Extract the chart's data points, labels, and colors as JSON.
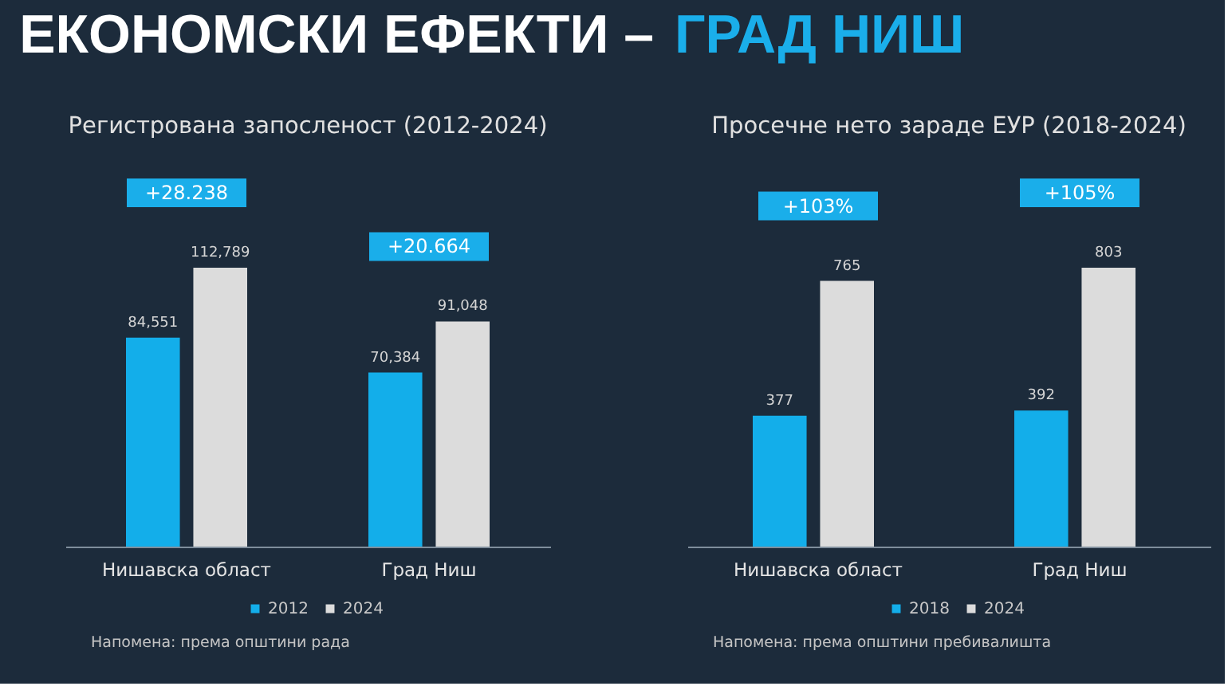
{
  "chart_data": [
    {
      "type": "other",
      "title": "ЕКОНОМСКИ ЕФЕКТИ – ГРАД НИШ"
    },
    {
      "type": "bar",
      "title": "Регистрована запосленост (2012-2024)",
      "categories": [
        "Нишавска област",
        "Град Ниш"
      ],
      "series": [
        {
          "name": "2012",
          "color": "#13aeea",
          "values": [
            84551,
            70384
          ],
          "value_labels": [
            "84,551",
            "70,384"
          ]
        },
        {
          "name": "2024",
          "color": "#dcdcdc",
          "values": [
            112789,
            91048
          ],
          "value_labels": [
            "112,789",
            "91,048"
          ]
        }
      ],
      "tick_labels": "x",
      "legend": "bottom",
      "annotations": [
        "+28.238",
        "+20.664",
        "Напомена: према општини рада"
      ]
    },
    {
      "type": "bar",
      "title": "Просечне нето зараде ЕУР (2018-2024)",
      "categories": [
        "Нишавска област",
        "Град Ниш"
      ],
      "series": [
        {
          "name": "2018",
          "color": "#13aeea",
          "values": [
            377,
            392
          ]
        },
        {
          "name": "2024",
          "color": "#dcdcdc",
          "values": [
            765,
            803
          ]
        }
      ],
      "tick_labels": "x",
      "legend": "bottom",
      "data_labels": true,
      "annotations": [
        "+103%",
        "+105%",
        "Напомена: према општини пребивалишта"
      ]
    }
  ]
}
